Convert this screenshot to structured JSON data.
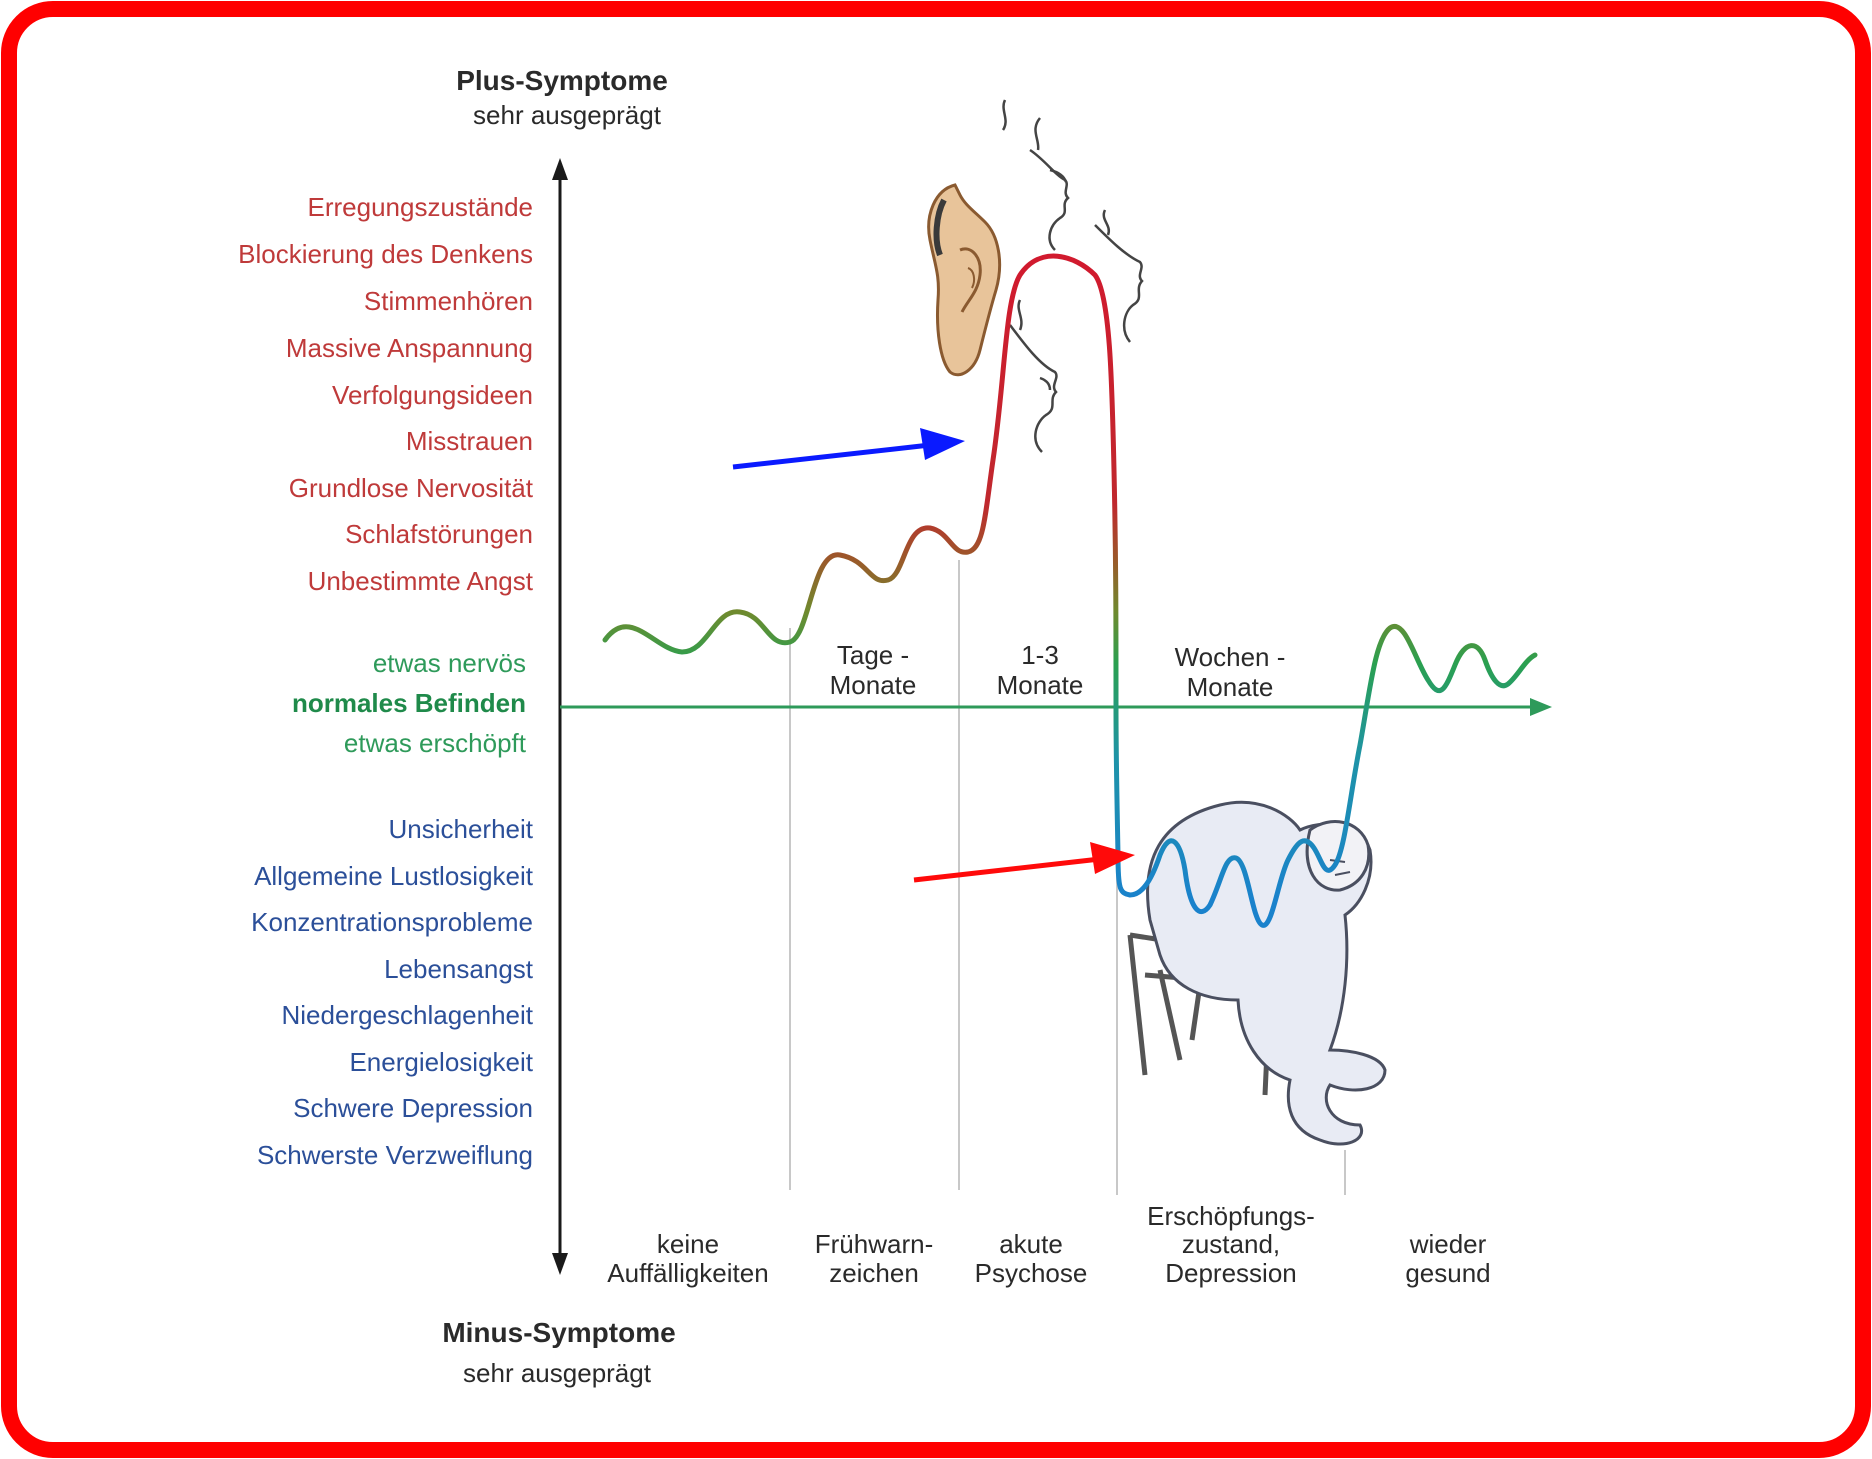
{
  "frame": {
    "border_color": "#ff0000"
  },
  "colors": {
    "plus": "#bf3a3a",
    "normal": "#2e9a5a",
    "minus": "#2b4f99",
    "axis": "#1a1a1a",
    "x_axis": "#2e9a5a",
    "arrow_blue": "#0a1aff",
    "arrow_red": "#ff0a0a",
    "divider": "#c8c8c8"
  },
  "axis": {
    "top_title": "Plus-Symptome",
    "top_sub": "sehr ausgeprägt",
    "bottom_title": "Minus-Symptome",
    "bottom_sub": "sehr ausgeprägt"
  },
  "plus_symptoms": [
    "Erregungszustände",
    "Blockierung des Denkens",
    "Stimmenhören",
    "Massive Anspannung",
    "Verfolgungsideen",
    "Misstrauen",
    "Grundlose Nervosität",
    "Schlafstörungen",
    "Unbestimmte Angst"
  ],
  "normal_labels": {
    "above": "etwas nervös",
    "center": "normales Befinden",
    "below": "etwas erschöpft"
  },
  "minus_symptoms": [
    "Unsicherheit",
    "Allgemeine Lustlosigkeit",
    "Konzentrationsprobleme",
    "Lebensangst",
    "Niedergeschlagenheit",
    "Energielosigkeit",
    "Schwere Depression",
    "Schwerste Verzweiflung"
  ],
  "durations": [
    {
      "line1": "Tage -",
      "line2": "Monate"
    },
    {
      "line1": "1-3",
      "line2": "Monate"
    },
    {
      "line1": "Wochen -",
      "line2": "Monate"
    }
  ],
  "phases": [
    {
      "lines": [
        "keine",
        "Auffälligkeiten"
      ]
    },
    {
      "lines": [
        "Frühwarn-",
        "zeichen"
      ]
    },
    {
      "lines": [
        "akute",
        "Psychose"
      ]
    },
    {
      "lines": [
        "Erschöpfungs-",
        "zustand,",
        "Depression"
      ]
    },
    {
      "lines": [
        "wieder",
        "gesund"
      ]
    }
  ],
  "illustrations": [
    {
      "icon": "ear-icon"
    },
    {
      "icon": "whispering-faces-icon"
    },
    {
      "icon": "depressed-person-on-chair-icon"
    }
  ]
}
